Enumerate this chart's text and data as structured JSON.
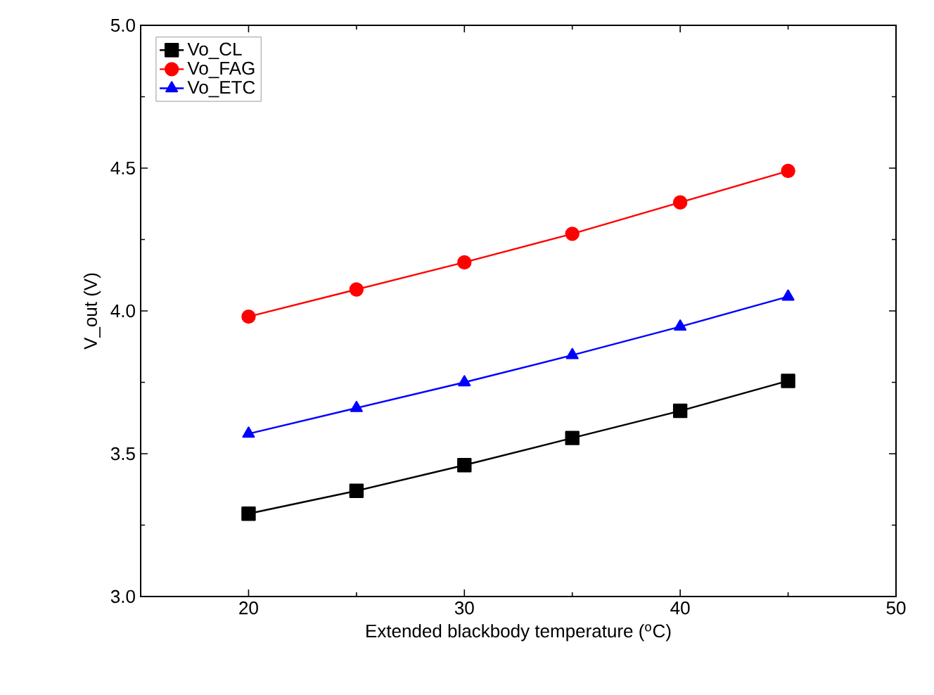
{
  "chart_data": {
    "type": "line",
    "xlabel": "Extended blackbody temperature ($^{o}$C)",
    "ylabel": "V_out (V)",
    "x": [
      20,
      25,
      30,
      35,
      40,
      45
    ],
    "series": [
      {
        "name": "Vo_CL",
        "color": "#000000",
        "marker": "square",
        "values": [
          3.29,
          3.37,
          3.46,
          3.555,
          3.65,
          3.755
        ]
      },
      {
        "name": "Vo_FAG",
        "color": "#ff0000",
        "marker": "circle",
        "values": [
          3.98,
          4.075,
          4.17,
          4.27,
          4.38,
          4.49
        ]
      },
      {
        "name": "Vo_ETC",
        "color": "#0000ff",
        "marker": "triangle",
        "values": [
          3.57,
          3.66,
          3.75,
          3.845,
          3.945,
          4.05
        ]
      }
    ],
    "xlim": [
      15,
      50
    ],
    "xticks": [
      20,
      30,
      40,
      50
    ],
    "ylim": [
      3.0,
      5.0
    ],
    "yticks": [
      {
        "value": 3,
        "label": "3.0"
      },
      3.5,
      {
        "value": 4,
        "label": "4.0"
      },
      4.5,
      {
        "value": 5,
        "label": "5.0"
      }
    ],
    "legend": "top left",
    "grid": false,
    "line_style": "solid"
  }
}
